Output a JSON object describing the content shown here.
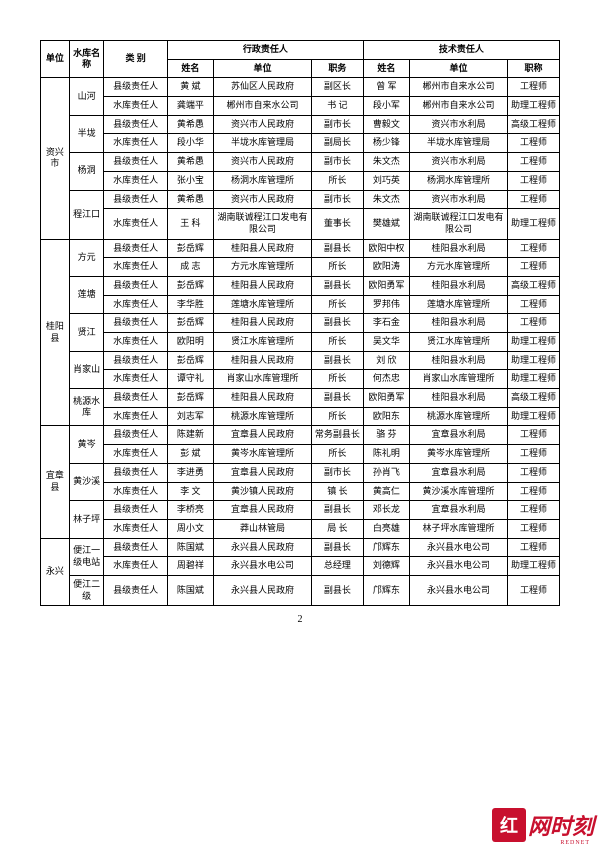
{
  "header": {
    "unit": "单位",
    "resName": "水库名称",
    "category": "类 别",
    "admin": "行政责任人",
    "tech": "技术责任人",
    "name": "姓名",
    "org": "单位",
    "position": "职务",
    "title": "职称"
  },
  "pageNum": "2",
  "logo": {
    "square": "红",
    "text": "网时刻",
    "sub": "REDNET"
  },
  "units": [
    {
      "unit": "资兴市",
      "reservoirs": [
        {
          "res": "山河",
          "rows": [
            {
              "cat": "县级责任人",
              "an": "黄 斌",
              "ao": "苏仙区人民政府",
              "ap": "副区长",
              "tn": "曾 军",
              "to": "郴州市自来水公司",
              "tt": "工程师"
            },
            {
              "cat": "水库责任人",
              "an": "龚端平",
              "ao": "郴州市自来水公司",
              "ap": "书 记",
              "tn": "段小军",
              "to": "郴州市自来水公司",
              "tt": "助理工程师"
            }
          ]
        },
        {
          "res": "半垅",
          "rows": [
            {
              "cat": "县级责任人",
              "an": "黄希愚",
              "ao": "资兴市人民政府",
              "ap": "副市长",
              "tn": "曹毅文",
              "to": "资兴市水利局",
              "tt": "高级工程师"
            },
            {
              "cat": "水库责任人",
              "an": "段小华",
              "ao": "半垅水库管理局",
              "ap": "副局长",
              "tn": "杨少锋",
              "to": "半垅水库管理局",
              "tt": "工程师"
            }
          ]
        },
        {
          "res": "杨洞",
          "rows": [
            {
              "cat": "县级责任人",
              "an": "黄希愚",
              "ao": "资兴市人民政府",
              "ap": "副市长",
              "tn": "朱文杰",
              "to": "资兴市水利局",
              "tt": "工程师"
            },
            {
              "cat": "水库责任人",
              "an": "张小宝",
              "ao": "杨洞水库管理所",
              "ap": "所长",
              "tn": "刘巧英",
              "to": "杨洞水库管理所",
              "tt": "工程师"
            }
          ]
        },
        {
          "res": "程江口",
          "rows": [
            {
              "cat": "县级责任人",
              "an": "黄希愚",
              "ao": "资兴市人民政府",
              "ap": "副市长",
              "tn": "朱文杰",
              "to": "资兴市水利局",
              "tt": "工程师"
            },
            {
              "cat": "水库责任人",
              "an": "王 科",
              "ao": "湖南联诚程江口发电有限公司",
              "ap": "董事长",
              "tn": "樊雄斌",
              "to": "湖南联诚程江口发电有限公司",
              "tt": "助理工程师"
            }
          ]
        }
      ]
    },
    {
      "unit": "桂阳县",
      "reservoirs": [
        {
          "res": "方元",
          "rows": [
            {
              "cat": "县级责任人",
              "an": "彭岳辉",
              "ao": "桂阳县人民政府",
              "ap": "副县长",
              "tn": "欧阳中权",
              "to": "桂阳县水利局",
              "tt": "工程师"
            },
            {
              "cat": "水库责任人",
              "an": "成 志",
              "ao": "方元水库管理所",
              "ap": "所长",
              "tn": "欧阳涛",
              "to": "方元水库管理所",
              "tt": "工程师"
            }
          ]
        },
        {
          "res": "莲塘",
          "rows": [
            {
              "cat": "县级责任人",
              "an": "彭岳辉",
              "ao": "桂阳县人民政府",
              "ap": "副县长",
              "tn": "欧阳勇军",
              "to": "桂阳县水利局",
              "tt": "高级工程师"
            },
            {
              "cat": "水库责任人",
              "an": "李华胜",
              "ao": "莲塘水库管理所",
              "ap": "所长",
              "tn": "罗邦伟",
              "to": "莲塘水库管理所",
              "tt": "工程师"
            }
          ]
        },
        {
          "res": "贤江",
          "rows": [
            {
              "cat": "县级责任人",
              "an": "彭岳辉",
              "ao": "桂阳县人民政府",
              "ap": "副县长",
              "tn": "李石金",
              "to": "桂阳县水利局",
              "tt": "工程师"
            },
            {
              "cat": "水库责任人",
              "an": "欧阳明",
              "ao": "贤江水库管理所",
              "ap": "所长",
              "tn": "吴文华",
              "to": "贤江水库管理所",
              "tt": "助理工程师"
            }
          ]
        },
        {
          "res": "肖家山",
          "rows": [
            {
              "cat": "县级责任人",
              "an": "彭岳辉",
              "ao": "桂阳县人民政府",
              "ap": "副县长",
              "tn": "刘 欣",
              "to": "桂阳县水利局",
              "tt": "助理工程师"
            },
            {
              "cat": "水库责任人",
              "an": "谭守礼",
              "ao": "肖家山水库管理所",
              "ap": "所长",
              "tn": "何杰忠",
              "to": "肖家山水库管理所",
              "tt": "助理工程师"
            }
          ]
        },
        {
          "res": "桃源水库",
          "rows": [
            {
              "cat": "县级责任人",
              "an": "彭岳辉",
              "ao": "桂阳县人民政府",
              "ap": "副县长",
              "tn": "欧阳勇军",
              "to": "桂阳县水利局",
              "tt": "高级工程师"
            },
            {
              "cat": "水库责任人",
              "an": "刘志军",
              "ao": "桃源水库管理所",
              "ap": "所长",
              "tn": "欧阳东",
              "to": "桃源水库管理所",
              "tt": "助理工程师"
            }
          ]
        }
      ]
    },
    {
      "unit": "宜章县",
      "reservoirs": [
        {
          "res": "黄岑",
          "rows": [
            {
              "cat": "县级责任人",
              "an": "陈建新",
              "ao": "宜章县人民政府",
              "ap": "常务副县长",
              "tn": "骆 芬",
              "to": "宜章县水利局",
              "tt": "工程师"
            },
            {
              "cat": "水库责任人",
              "an": "彭 斌",
              "ao": "黄岑水库管理所",
              "ap": "所长",
              "tn": "陈礼明",
              "to": "黄岑水库管理所",
              "tt": "工程师"
            }
          ]
        },
        {
          "res": "黄沙溪",
          "rows": [
            {
              "cat": "县级责任人",
              "an": "李进勇",
              "ao": "宜章县人民政府",
              "ap": "副市长",
              "tn": "孙肖飞",
              "to": "宜章县水利局",
              "tt": "工程师"
            },
            {
              "cat": "水库责任人",
              "an": "李 文",
              "ao": "黄沙镇人民政府",
              "ap": "镇 长",
              "tn": "黄高仁",
              "to": "黄沙溪水库管理所",
              "tt": "工程师"
            }
          ]
        },
        {
          "res": "林子坪",
          "rows": [
            {
              "cat": "县级责任人",
              "an": "李桥亮",
              "ao": "宜章县人民政府",
              "ap": "副县长",
              "tn": "邓长龙",
              "to": "宜章县水利局",
              "tt": "工程师"
            },
            {
              "cat": "水库责任人",
              "an": "周小文",
              "ao": "莽山林管局",
              "ap": "局 长",
              "tn": "白亮雄",
              "to": "林子坪水库管理所",
              "tt": "工程师"
            }
          ]
        }
      ]
    },
    {
      "unit": "永兴",
      "reservoirs": [
        {
          "res": "便江一级电站",
          "rows": [
            {
              "cat": "县级责任人",
              "an": "陈国斌",
              "ao": "永兴县人民政府",
              "ap": "副县长",
              "tn": "邝辉东",
              "to": "永兴县水电公司",
              "tt": "工程师"
            },
            {
              "cat": "水库责任人",
              "an": "周碧祥",
              "ao": "永兴县水电公司",
              "ap": "总经理",
              "tn": "刘德辉",
              "to": "永兴县水电公司",
              "tt": "助理工程师"
            }
          ]
        },
        {
          "res": "便江二级",
          "rows": [
            {
              "cat": "县级责任人",
              "an": "陈国斌",
              "ao": "永兴县人民政府",
              "ap": "副县长",
              "tn": "邝辉东",
              "to": "永兴县水电公司",
              "tt": "工程师"
            }
          ]
        }
      ]
    }
  ]
}
